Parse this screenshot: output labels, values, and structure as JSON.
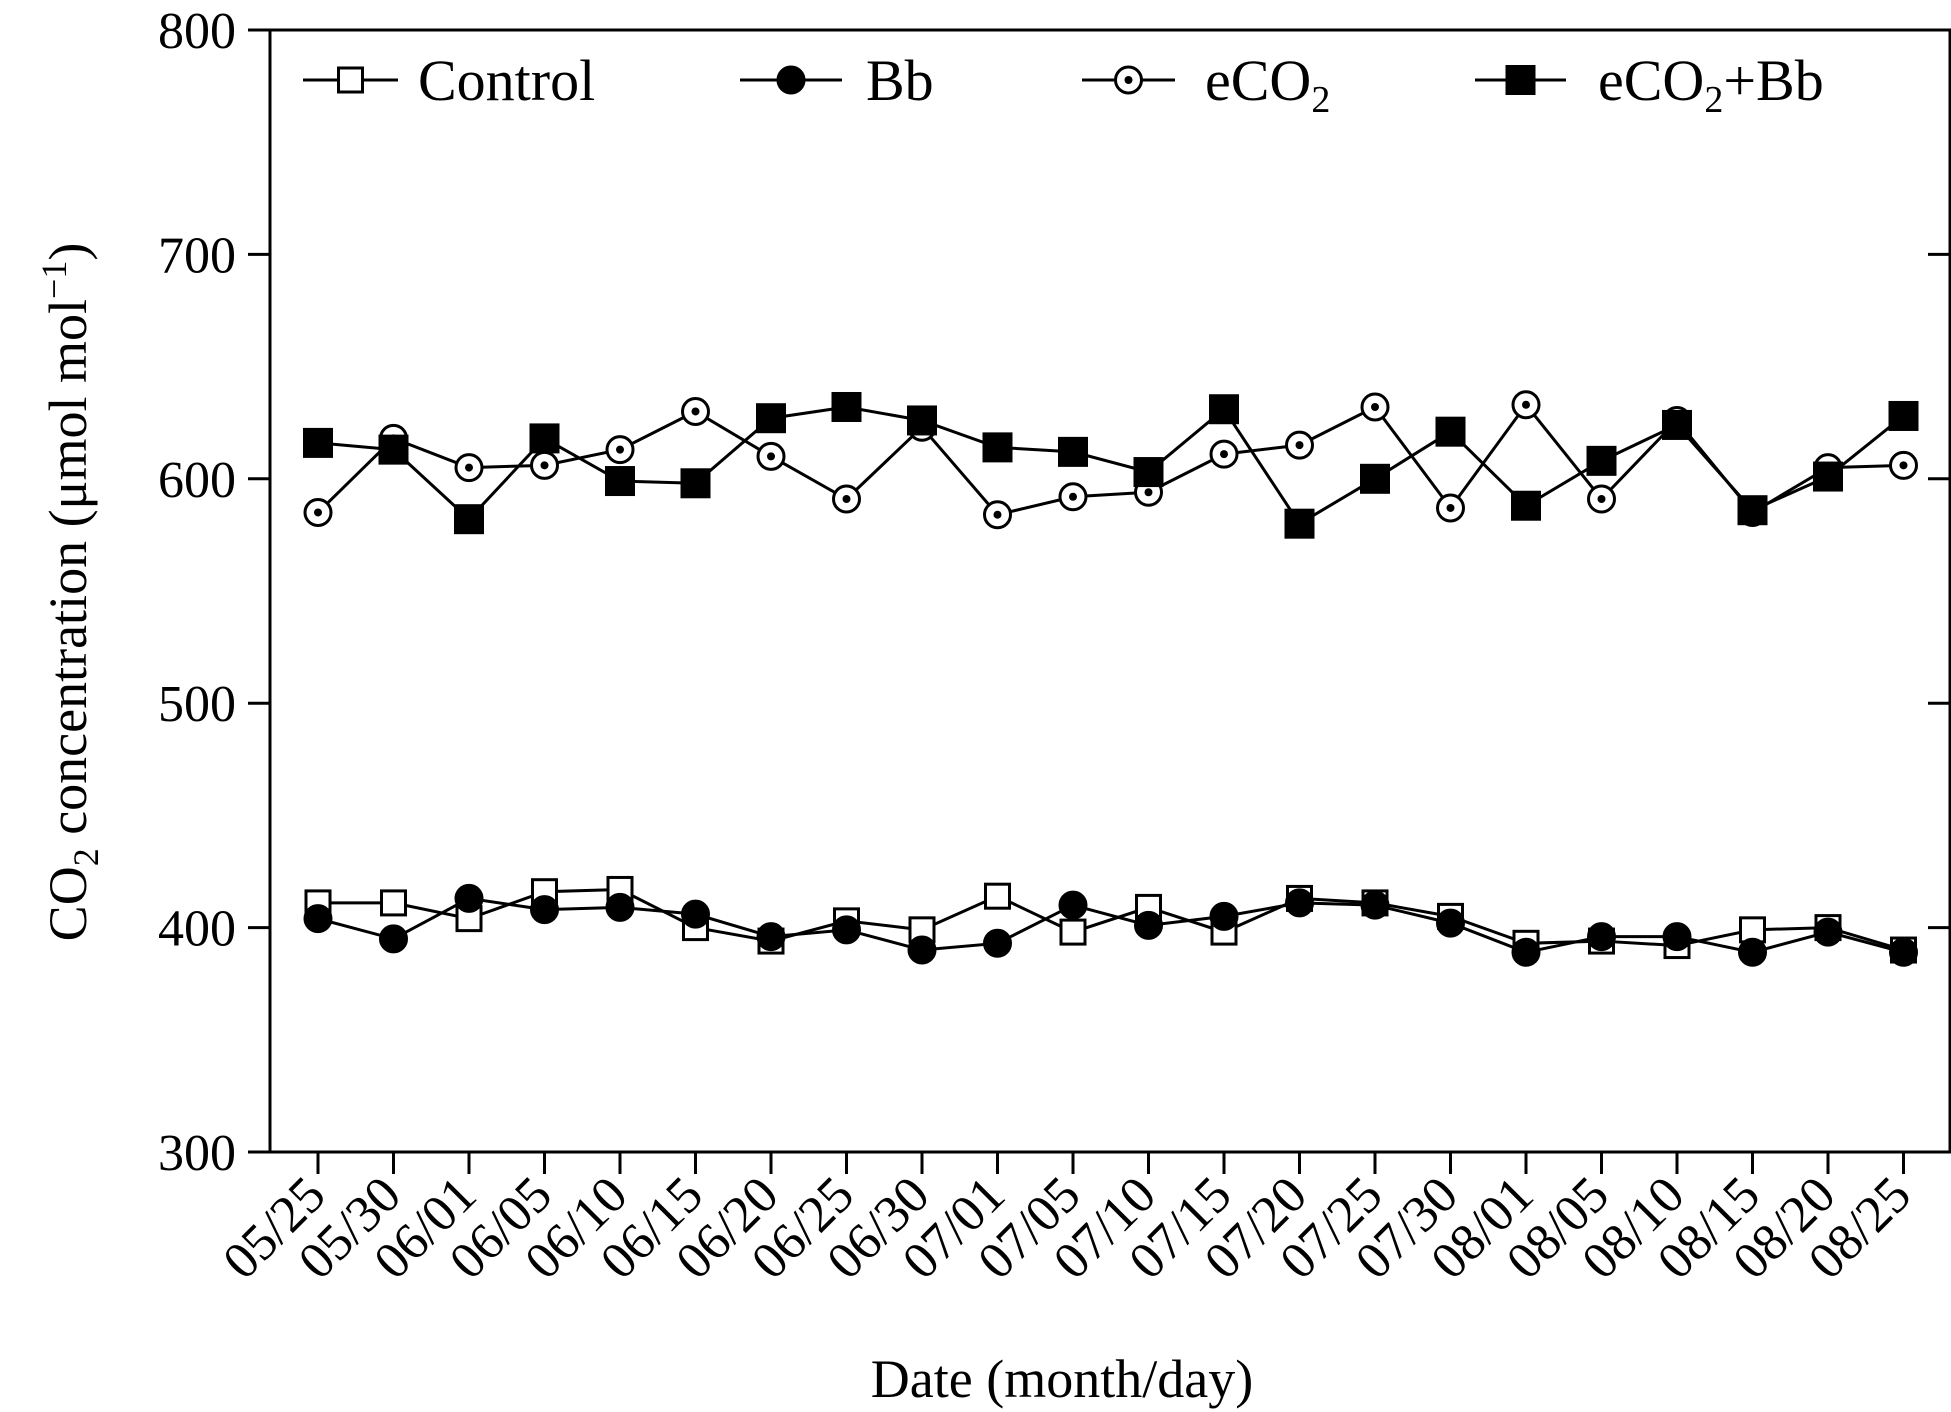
{
  "chart_data": {
    "type": "line",
    "xlabel": "Date (month/day)",
    "ylabel": {
      "prefix": "CO",
      "sub": "2",
      "main": " concentration (μmol mol",
      "sup": "−1",
      "suffix": ")"
    },
    "ylim": [
      300,
      800
    ],
    "yticks": [
      300,
      400,
      500,
      600,
      700,
      800
    ],
    "grid": false,
    "legend_position": "top",
    "categories": [
      "05/25",
      "05/30",
      "06/01",
      "06/05",
      "06/10",
      "06/15",
      "06/20",
      "06/25",
      "06/30",
      "07/01",
      "07/05",
      "07/10",
      "07/15",
      "07/20",
      "07/25",
      "07/30",
      "08/01",
      "08/05",
      "08/10",
      "08/15",
      "08/20",
      "08/25"
    ],
    "series": [
      {
        "name": "Control",
        "name_sub": "",
        "name_suffix": "",
        "marker": "open-square",
        "values": [
          411,
          411,
          404,
          416,
          417,
          400,
          394,
          403,
          399,
          414,
          398,
          409,
          398,
          413,
          411,
          405,
          393,
          394,
          392,
          399,
          400,
          390
        ]
      },
      {
        "name": "Bb",
        "name_sub": "",
        "name_suffix": "",
        "marker": "filled-circle",
        "values": [
          404,
          395,
          413,
          408,
          409,
          406,
          396,
          399,
          390,
          393,
          410,
          401,
          405,
          411,
          410,
          402,
          389,
          396,
          396,
          389,
          398,
          389
        ]
      },
      {
        "name": "eCO",
        "name_sub": "2",
        "name_suffix": "",
        "marker": "dotted-circle",
        "values": [
          585,
          618,
          605,
          606,
          613,
          630,
          610,
          591,
          623,
          584,
          592,
          594,
          611,
          615,
          632,
          587,
          633,
          591,
          626,
          585,
          605,
          606
        ]
      },
      {
        "name": "eCO",
        "name_sub": "2",
        "name_suffix": "+Bb",
        "marker": "filled-square",
        "values": [
          616,
          613,
          582,
          618,
          599,
          598,
          627,
          632,
          626,
          614,
          612,
          603,
          631,
          580,
          600,
          621,
          588,
          608,
          624,
          586,
          601,
          628
        ]
      }
    ]
  }
}
